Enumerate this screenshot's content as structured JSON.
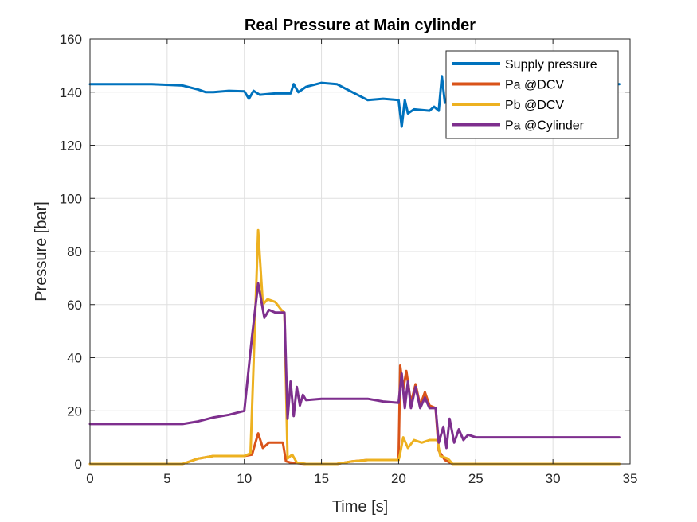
{
  "chart_data": {
    "type": "line",
    "title": "Real Pressure at Main cylinder",
    "xlabel": "Time [s]",
    "ylabel": "Pressure [bar]",
    "xlim": [
      0,
      35
    ],
    "ylim": [
      0,
      160
    ],
    "xticks": [
      0,
      5,
      10,
      15,
      20,
      25,
      30,
      35
    ],
    "yticks": [
      0,
      20,
      40,
      60,
      80,
      100,
      120,
      140,
      160
    ],
    "grid": true,
    "legend_position": "top-right",
    "series": [
      {
        "name": "Supply pressure",
        "color": "#0072BD",
        "points": [
          [
            0,
            143
          ],
          [
            2,
            143
          ],
          [
            4,
            143
          ],
          [
            6,
            142.5
          ],
          [
            7,
            141
          ],
          [
            7.5,
            140
          ],
          [
            8,
            140
          ],
          [
            9,
            140.5
          ],
          [
            10,
            140.3
          ],
          [
            10.3,
            137.5
          ],
          [
            10.6,
            140.5
          ],
          [
            11,
            139
          ],
          [
            12,
            139.5
          ],
          [
            13,
            139.5
          ],
          [
            13.2,
            143
          ],
          [
            13.5,
            140
          ],
          [
            14,
            142
          ],
          [
            15,
            143.5
          ],
          [
            16,
            143
          ],
          [
            17,
            140
          ],
          [
            18,
            137
          ],
          [
            19,
            137.5
          ],
          [
            20,
            137
          ],
          [
            20.2,
            127
          ],
          [
            20.4,
            137
          ],
          [
            20.6,
            132
          ],
          [
            21,
            133.5
          ],
          [
            22,
            133
          ],
          [
            22.3,
            134.5
          ],
          [
            22.6,
            133
          ],
          [
            22.8,
            146
          ],
          [
            23,
            136
          ],
          [
            23.5,
            142
          ],
          [
            24,
            143
          ],
          [
            26,
            143
          ],
          [
            28,
            143
          ],
          [
            30,
            143
          ],
          [
            32,
            143
          ],
          [
            34.3,
            143
          ]
        ]
      },
      {
        "name": "Pa @DCV",
        "color": "#D95319",
        "points": [
          [
            0,
            0
          ],
          [
            6,
            0
          ],
          [
            7,
            2
          ],
          [
            8,
            3
          ],
          [
            9,
            3
          ],
          [
            10,
            3
          ],
          [
            10.5,
            3.5
          ],
          [
            10.9,
            11.5
          ],
          [
            11.2,
            6
          ],
          [
            11.6,
            8
          ],
          [
            12,
            8
          ],
          [
            12.5,
            8
          ],
          [
            12.7,
            1
          ],
          [
            13,
            0.5
          ],
          [
            14,
            0
          ],
          [
            16,
            0
          ],
          [
            17,
            1
          ],
          [
            18,
            1.5
          ],
          [
            19,
            1.5
          ],
          [
            20,
            1.5
          ],
          [
            20.1,
            37
          ],
          [
            20.3,
            28
          ],
          [
            20.5,
            35
          ],
          [
            20.8,
            23
          ],
          [
            21.1,
            30
          ],
          [
            21.4,
            22
          ],
          [
            21.7,
            27
          ],
          [
            22,
            22
          ],
          [
            22.4,
            21
          ],
          [
            22.6,
            5
          ],
          [
            23,
            1.5
          ],
          [
            23.5,
            0
          ],
          [
            25,
            0
          ],
          [
            27,
            0
          ],
          [
            30,
            0
          ],
          [
            32,
            0
          ],
          [
            34.3,
            0
          ]
        ]
      },
      {
        "name": "Pb @DCV",
        "color": "#EDB120",
        "points": [
          [
            0,
            0
          ],
          [
            6,
            0
          ],
          [
            7,
            2
          ],
          [
            8,
            3
          ],
          [
            9,
            3
          ],
          [
            10,
            3
          ],
          [
            10.4,
            4
          ],
          [
            10.7,
            55
          ],
          [
            10.9,
            88
          ],
          [
            11.2,
            60
          ],
          [
            11.5,
            62
          ],
          [
            12,
            61
          ],
          [
            12.4,
            58
          ],
          [
            12.6,
            57
          ],
          [
            12.8,
            2
          ],
          [
            13.1,
            3.5
          ],
          [
            13.4,
            0.5
          ],
          [
            14,
            0
          ],
          [
            16,
            0
          ],
          [
            17,
            1
          ],
          [
            18,
            1.5
          ],
          [
            19,
            1.5
          ],
          [
            20,
            1.5
          ],
          [
            20.1,
            4
          ],
          [
            20.3,
            10
          ],
          [
            20.6,
            6
          ],
          [
            21,
            9
          ],
          [
            21.5,
            8
          ],
          [
            22,
            9
          ],
          [
            22.5,
            9
          ],
          [
            22.7,
            3
          ],
          [
            23.2,
            2
          ],
          [
            23.5,
            0
          ],
          [
            25,
            0
          ],
          [
            27,
            0
          ],
          [
            30,
            0
          ],
          [
            32,
            0
          ],
          [
            34.3,
            0
          ]
        ]
      },
      {
        "name": "Pa @Cylinder",
        "color": "#7E2F8E",
        "points": [
          [
            0,
            15
          ],
          [
            2,
            15
          ],
          [
            4,
            15
          ],
          [
            6,
            15
          ],
          [
            7,
            16
          ],
          [
            8,
            17.5
          ],
          [
            9,
            18.5
          ],
          [
            10,
            20
          ],
          [
            10.5,
            48
          ],
          [
            10.9,
            68
          ],
          [
            11.3,
            55
          ],
          [
            11.6,
            58
          ],
          [
            12,
            57
          ],
          [
            12.6,
            57
          ],
          [
            12.8,
            17
          ],
          [
            13,
            31
          ],
          [
            13.2,
            18
          ],
          [
            13.4,
            29
          ],
          [
            13.6,
            22
          ],
          [
            13.8,
            26
          ],
          [
            14,
            24
          ],
          [
            15,
            24.5
          ],
          [
            16,
            24.5
          ],
          [
            17,
            24.5
          ],
          [
            18,
            24.5
          ],
          [
            19,
            23.5
          ],
          [
            20,
            23
          ],
          [
            20.2,
            34
          ],
          [
            20.4,
            21
          ],
          [
            20.6,
            31
          ],
          [
            20.8,
            21
          ],
          [
            21.1,
            29
          ],
          [
            21.4,
            21
          ],
          [
            21.7,
            25
          ],
          [
            22,
            21
          ],
          [
            22.4,
            21
          ],
          [
            22.6,
            8
          ],
          [
            22.9,
            14
          ],
          [
            23.1,
            6
          ],
          [
            23.3,
            17
          ],
          [
            23.6,
            8
          ],
          [
            23.9,
            13
          ],
          [
            24.2,
            9
          ],
          [
            24.5,
            11
          ],
          [
            25,
            10
          ],
          [
            26,
            10
          ],
          [
            28,
            10
          ],
          [
            30,
            10
          ],
          [
            32,
            10
          ],
          [
            34.3,
            10
          ]
        ]
      }
    ]
  }
}
